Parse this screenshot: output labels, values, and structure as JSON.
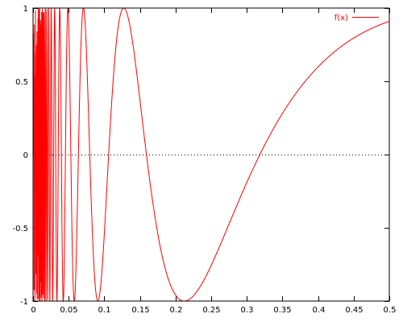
{
  "chart_data": {
    "type": "line",
    "function": "sin(1/x)",
    "xlim": [
      0,
      0.5
    ],
    "ylim": [
      -1,
      1
    ],
    "x_ticks": [
      0,
      0.05,
      0.1,
      0.15,
      0.2,
      0.25,
      0.3,
      0.35,
      0.4,
      0.45,
      0.5
    ],
    "x_tick_labels": [
      "0",
      "0.05",
      "0.1",
      "0.15",
      "0.2",
      "0.25",
      "0.3",
      "0.35",
      "0.4",
      "0.45",
      "0.5"
    ],
    "y_ticks": [
      -1,
      -0.5,
      0,
      0.5,
      1
    ],
    "y_tick_labels": [
      "-1",
      "-0.5",
      "0",
      "0.5",
      "1"
    ],
    "zero_line": "dotted",
    "grid": false,
    "legend": {
      "position": "top-right",
      "entries": [
        "f(x)"
      ]
    },
    "series": [
      {
        "name": "f(x)",
        "color": "#ff0000",
        "x_range": [
          0.001,
          0.5
        ]
      }
    ]
  }
}
